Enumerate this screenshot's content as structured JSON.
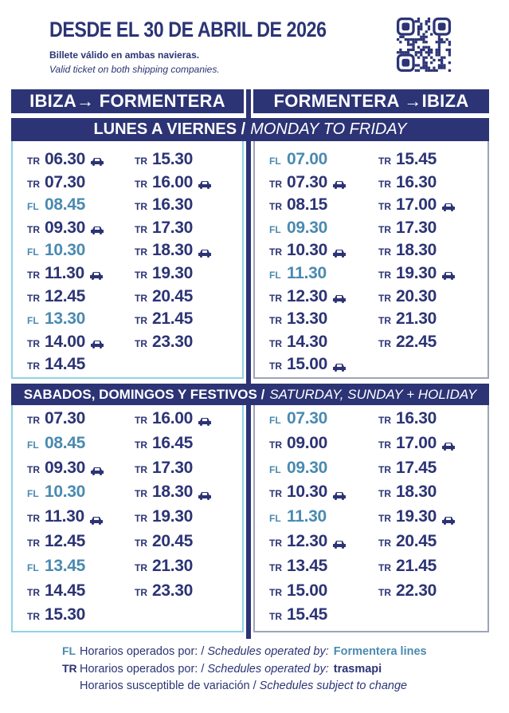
{
  "header": {
    "title": "DESDE EL 30 DE ABRIL DE 2026",
    "subtitle_es": "Billete válido en ambas navieras.",
    "subtitle_en": "Valid ticket on both shipping companies.",
    "qr_icon": "qr-code-icon"
  },
  "routes": {
    "outbound": "IBIZA→ FORMENTERA",
    "return": "FORMENTERA →IBIZA"
  },
  "colors": {
    "navy": "#2c3475",
    "fl": "#4a8ab0",
    "left_border": "#8fd3e8",
    "right_border": "#a0a4b8"
  },
  "weekday": {
    "label_es": "LUNES A VIERNES /",
    "label_en": "MONDAY TO FRIDAY",
    "ibiza_formentera": [
      [
        {
          "op": "TR",
          "time": "06.30",
          "car": true
        },
        {
          "op": "TR",
          "time": "07.30"
        },
        {
          "op": "FL",
          "time": "08.45"
        },
        {
          "op": "TR",
          "time": "09.30",
          "car": true
        },
        {
          "op": "FL",
          "time": "10.30"
        },
        {
          "op": "TR",
          "time": "11.30",
          "car": true
        },
        {
          "op": "TR",
          "time": "12.45"
        },
        {
          "op": "FL",
          "time": "13.30"
        },
        {
          "op": "TR",
          "time": "14.00",
          "car": true
        },
        {
          "op": "TR",
          "time": "14.45"
        }
      ],
      [
        {
          "op": "TR",
          "time": "15.30"
        },
        {
          "op": "TR",
          "time": "16.00",
          "car": true
        },
        {
          "op": "TR",
          "time": "16.30"
        },
        {
          "op": "TR",
          "time": "17.30"
        },
        {
          "op": "TR",
          "time": "18.30",
          "car": true
        },
        {
          "op": "TR",
          "time": "19.30"
        },
        {
          "op": "TR",
          "time": "20.45"
        },
        {
          "op": "TR",
          "time": "21.45"
        },
        {
          "op": "TR",
          "time": "23.30"
        }
      ]
    ],
    "formentera_ibiza": [
      [
        {
          "op": "FL",
          "time": "07.00"
        },
        {
          "op": "TR",
          "time": "07.30",
          "car": true
        },
        {
          "op": "TR",
          "time": "08.15"
        },
        {
          "op": "FL",
          "time": "09.30"
        },
        {
          "op": "TR",
          "time": "10.30",
          "car": true
        },
        {
          "op": "FL",
          "time": "11.30"
        },
        {
          "op": "TR",
          "time": "12.30",
          "car": true
        },
        {
          "op": "TR",
          "time": "13.30"
        },
        {
          "op": "TR",
          "time": "14.30"
        },
        {
          "op": "TR",
          "time": "15.00",
          "car": true
        }
      ],
      [
        {
          "op": "TR",
          "time": "15.45"
        },
        {
          "op": "TR",
          "time": "16.30"
        },
        {
          "op": "TR",
          "time": "17.00",
          "car": true
        },
        {
          "op": "TR",
          "time": "17.30"
        },
        {
          "op": "TR",
          "time": "18.30"
        },
        {
          "op": "TR",
          "time": "19.30",
          "car": true
        },
        {
          "op": "TR",
          "time": "20.30"
        },
        {
          "op": "TR",
          "time": "21.30"
        },
        {
          "op": "TR",
          "time": "22.45"
        }
      ]
    ]
  },
  "weekend": {
    "label_es": "SABADOS, DOMINGOS Y FESTIVOS /",
    "label_en": "SATURDAY, SUNDAY + HOLIDAY",
    "ibiza_formentera": [
      [
        {
          "op": "TR",
          "time": "07.30"
        },
        {
          "op": "FL",
          "time": "08.45"
        },
        {
          "op": "TR",
          "time": "09.30",
          "car": true
        },
        {
          "op": "FL",
          "time": "10.30"
        },
        {
          "op": "TR",
          "time": "11.30",
          "car": true
        },
        {
          "op": "TR",
          "time": "12.45"
        },
        {
          "op": "FL",
          "time": "13.45"
        },
        {
          "op": "TR",
          "time": "14.45"
        },
        {
          "op": "TR",
          "time": "15.30"
        }
      ],
      [
        {
          "op": "TR",
          "time": "16.00",
          "car": true
        },
        {
          "op": "TR",
          "time": "16.45"
        },
        {
          "op": "TR",
          "time": "17.30"
        },
        {
          "op": "TR",
          "time": "18.30",
          "car": true
        },
        {
          "op": "TR",
          "time": "19.30"
        },
        {
          "op": "TR",
          "time": "20.45"
        },
        {
          "op": "TR",
          "time": "21.30"
        },
        {
          "op": "TR",
          "time": "23.30"
        }
      ]
    ],
    "formentera_ibiza": [
      [
        {
          "op": "FL",
          "time": "07.30"
        },
        {
          "op": "TR",
          "time": "09.00"
        },
        {
          "op": "FL",
          "time": "09.30"
        },
        {
          "op": "TR",
          "time": "10.30",
          "car": true
        },
        {
          "op": "FL",
          "time": "11.30"
        },
        {
          "op": "TR",
          "time": "12.30",
          "car": true
        },
        {
          "op": "TR",
          "time": "13.45"
        },
        {
          "op": "TR",
          "time": "15.00"
        },
        {
          "op": "TR",
          "time": "15.45"
        }
      ],
      [
        {
          "op": "TR",
          "time": "16.30"
        },
        {
          "op": "TR",
          "time": "17.00",
          "car": true
        },
        {
          "op": "TR",
          "time": "17.45"
        },
        {
          "op": "TR",
          "time": "18.30"
        },
        {
          "op": "TR",
          "time": "19.30",
          "car": true
        },
        {
          "op": "TR",
          "time": "20.45"
        },
        {
          "op": "TR",
          "time": "21.45"
        },
        {
          "op": "TR",
          "time": "22.30"
        }
      ]
    ]
  },
  "footer": {
    "fl": {
      "code": "FL",
      "es": "Horarios operados por: /",
      "en": "Schedules operated by:",
      "logo": "Formentera lines"
    },
    "tr": {
      "code": "TR",
      "es": "Horarios operados por: /",
      "en": "Schedules operated by:",
      "logo": "trasmapi"
    },
    "note_es": "Horarios susceptible de variación /",
    "note_en": "Schedules subject to change"
  }
}
